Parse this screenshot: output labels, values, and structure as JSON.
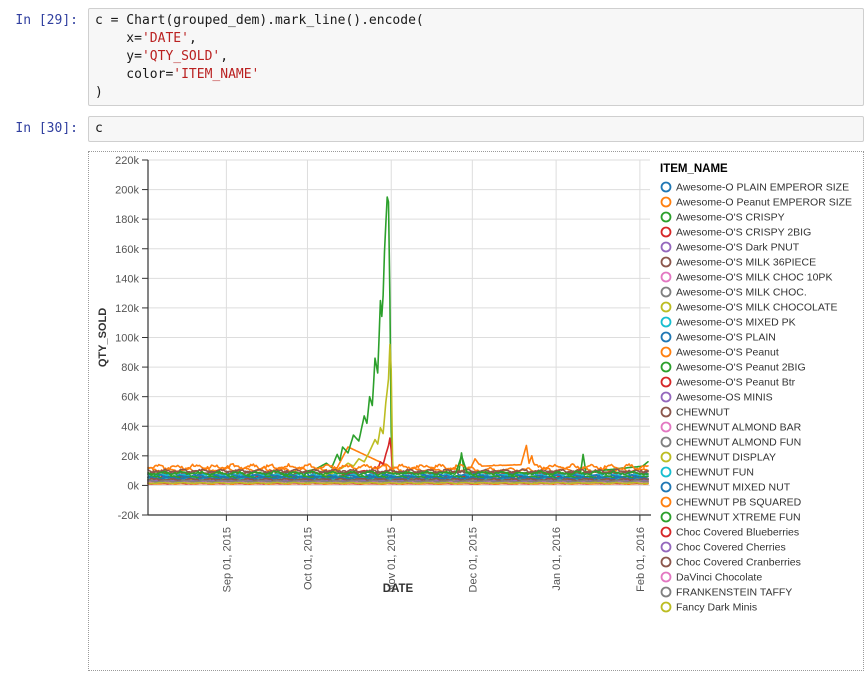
{
  "notebook": {
    "cells": [
      {
        "prompt": "In [29]:",
        "code_lines": [
          [
            [
              "plain",
              "c = Chart(grouped_dem).mark_line().encode("
            ]
          ],
          [
            [
              "plain",
              "    x="
            ],
            [
              "string",
              "'DATE'"
            ],
            [
              "plain",
              ","
            ]
          ],
          [
            [
              "plain",
              "    y="
            ],
            [
              "string",
              "'QTY_SOLD'"
            ],
            [
              "plain",
              ","
            ]
          ],
          [
            [
              "plain",
              "    color="
            ],
            [
              "string",
              "'ITEM_NAME'"
            ]
          ],
          [
            [
              "plain",
              ")"
            ]
          ]
        ]
      },
      {
        "prompt": "In [30]:",
        "code_lines": [
          [
            [
              "plain",
              "c"
            ]
          ]
        ]
      }
    ],
    "colors": {
      "prompt": "#303F9F",
      "code": "#1a1a1a",
      "string": "#BA2121",
      "cell_bg": "#f7f7f7",
      "cell_border": "#cfcfcf",
      "output_border": "#9a9a9a"
    }
  },
  "chart_data": {
    "type": "line",
    "title": "",
    "xlabel": "DATE",
    "ylabel": "QTY_SOLD",
    "legend_title": "ITEM_NAME",
    "legend_position": "right",
    "grid": true,
    "units": "values in thousands (k) of QTY_SOLD",
    "x_domain": [
      "2015-08-03",
      "2016-02-04"
    ],
    "total_days": 185,
    "xticks": [
      {
        "day": 29,
        "label": "Sep 01, 2015"
      },
      {
        "day": 59,
        "label": "Oct 01, 2015"
      },
      {
        "day": 90,
        "label": "Nov 01, 2015"
      },
      {
        "day": 120,
        "label": "Dec 01, 2015"
      },
      {
        "day": 151,
        "label": "Jan 01, 2016"
      },
      {
        "day": 182,
        "label": "Feb 01, 2016"
      }
    ],
    "ylim_k": [
      -20,
      220
    ],
    "yticks": [
      {
        "v": -20,
        "label": "-20k"
      },
      {
        "v": 0,
        "label": "0k"
      },
      {
        "v": 20,
        "label": "20k"
      },
      {
        "v": 40,
        "label": "40k"
      },
      {
        "v": 60,
        "label": "60k"
      },
      {
        "v": 80,
        "label": "80k"
      },
      {
        "v": 100,
        "label": "100k"
      },
      {
        "v": 120,
        "label": "120k"
      },
      {
        "v": 140,
        "label": "140k"
      },
      {
        "v": 160,
        "label": "160k"
      },
      {
        "v": 180,
        "label": "180k"
      },
      {
        "v": 200,
        "label": "200k"
      },
      {
        "v": 220,
        "label": "220k"
      }
    ],
    "palette": [
      "#1f77b4",
      "#ff7f0e",
      "#2ca02c",
      "#d62728",
      "#9467bd",
      "#8c564b",
      "#e377c2",
      "#7f7f7f",
      "#bcbd22",
      "#17becf"
    ],
    "axis_colors": {
      "grid": "#dddddd",
      "domain": "#333333",
      "tick_label": "#555555",
      "title": "#333333",
      "legend_label": "#333333"
    },
    "series": [
      {
        "name": "Awesome-O PLAIN EMPEROR SIZE",
        "color": "#1f77b4",
        "base_k": 7.5,
        "amp_k": 1.6
      },
      {
        "name": "Awesome-O Peanut EMPEROR SIZE",
        "color": "#ff7f0e",
        "base_k": 10.5,
        "amp_k": 2.0,
        "peaks_day_valuek": [
          [
            70,
            12
          ],
          [
            74,
            26
          ],
          [
            88,
            14
          ]
        ]
      },
      {
        "name": "Awesome-O'S CRISPY",
        "color": "#2ca02c",
        "base_k": 7.0,
        "amp_k": 1.8,
        "peaks_day_valuek": [
          [
            55,
            8
          ],
          [
            62,
            11
          ],
          [
            66,
            15
          ],
          [
            68,
            12
          ],
          [
            70,
            21
          ],
          [
            71,
            17
          ],
          [
            72,
            26
          ],
          [
            74,
            22
          ],
          [
            76,
            34
          ],
          [
            78,
            30
          ],
          [
            80,
            47
          ],
          [
            81,
            42
          ],
          [
            82,
            60
          ],
          [
            83,
            54
          ],
          [
            84,
            86
          ],
          [
            85,
            76
          ],
          [
            86,
            125
          ],
          [
            86.7,
            110
          ],
          [
            87.5,
            158
          ],
          [
            88.8,
            206
          ],
          [
            89.3,
            170
          ],
          [
            89.8,
            60
          ],
          [
            90.2,
            12
          ],
          [
            92,
            8
          ],
          [
            115,
            9
          ],
          [
            116,
            22
          ],
          [
            117,
            9
          ],
          [
            160,
            8
          ],
          [
            161,
            21
          ],
          [
            162,
            9
          ],
          [
            183,
            13
          ],
          [
            185,
            16
          ]
        ]
      },
      {
        "name": "Awesome-O'S CRISPY 2BIG",
        "color": "#d62728",
        "base_k": 5.0,
        "amp_k": 1.2,
        "peaks_day_valuek": [
          [
            70,
            6
          ],
          [
            76,
            8.5
          ],
          [
            80,
            10
          ],
          [
            82,
            9
          ],
          [
            84,
            12.5
          ],
          [
            85,
            11
          ],
          [
            86,
            16
          ],
          [
            87,
            14
          ],
          [
            88,
            21
          ],
          [
            89,
            27
          ],
          [
            89.6,
            33
          ],
          [
            90,
            24
          ],
          [
            90.4,
            8
          ],
          [
            91,
            5
          ]
        ]
      },
      {
        "name": "Awesome-O'S Dark PNUT",
        "color": "#9467bd",
        "base_k": 4.2,
        "amp_k": 0.9
      },
      {
        "name": "Awesome-O'S MILK 36PIECE",
        "color": "#8c564b",
        "base_k": 8.8,
        "amp_k": 1.4
      },
      {
        "name": "Awesome-O'S MILK CHOC 10PK",
        "color": "#e377c2",
        "base_k": 2.6,
        "amp_k": 0.6
      },
      {
        "name": "Awesome-O'S MILK CHOC.",
        "color": "#7f7f7f",
        "base_k": 5.2,
        "amp_k": 1.0
      },
      {
        "name": "Awesome-O'S MILK CHOCOLATE",
        "color": "#bcbd22",
        "base_k": 4.2,
        "amp_k": 1.0,
        "peaks_day_valuek": [
          [
            58,
            4
          ],
          [
            64,
            6
          ],
          [
            68,
            8
          ],
          [
            72,
            12
          ],
          [
            74,
            15
          ],
          [
            76,
            13
          ],
          [
            78,
            18
          ],
          [
            80,
            16
          ],
          [
            82,
            23
          ],
          [
            84,
            31
          ],
          [
            85,
            28
          ],
          [
            86,
            39
          ],
          [
            87,
            35
          ],
          [
            88,
            56
          ],
          [
            89,
            72
          ],
          [
            89.6,
            100
          ],
          [
            90,
            78
          ],
          [
            90.4,
            18
          ],
          [
            91,
            4.5
          ]
        ]
      },
      {
        "name": "Awesome-O'S MIXED PK",
        "color": "#17becf",
        "base_k": 6.6,
        "amp_k": 1.2
      },
      {
        "name": "Awesome-O'S PLAIN",
        "color": "#1f77b4",
        "base_k": 6.2,
        "amp_k": 1.1
      },
      {
        "name": "Awesome-O'S Peanut",
        "color": "#ff7f0e",
        "base_k": 12.5,
        "amp_k": 2.2,
        "peaks_day_valuek": [
          [
            120,
            14
          ],
          [
            121,
            18
          ],
          [
            123,
            13
          ],
          [
            138,
            14
          ],
          [
            140,
            27
          ],
          [
            141,
            15
          ],
          [
            142,
            20
          ],
          [
            143,
            12
          ]
        ]
      },
      {
        "name": "Awesome-O'S Peanut 2BIG",
        "color": "#2ca02c",
        "base_k": 5.6,
        "amp_k": 1.0
      },
      {
        "name": "Awesome-O'S Peanut Btr",
        "color": "#d62728",
        "base_k": 2.3,
        "amp_k": 0.5
      },
      {
        "name": "Awesome-OS MINIS",
        "color": "#9467bd",
        "base_k": 3.6,
        "amp_k": 0.8
      },
      {
        "name": "CHEWNUT",
        "color": "#8c564b",
        "base_k": 9.6,
        "amp_k": 1.5
      },
      {
        "name": "CHEWNUT ALMOND BAR",
        "color": "#e377c2",
        "base_k": 2.0,
        "amp_k": 0.5
      },
      {
        "name": "CHEWNUT ALMOND FUN",
        "color": "#7f7f7f",
        "base_k": 3.6,
        "amp_k": 0.7
      },
      {
        "name": "CHEWNUT DISPLAY",
        "color": "#bcbd22",
        "base_k": 3.1,
        "amp_k": 0.6
      },
      {
        "name": "CHEWNUT FUN",
        "color": "#17becf",
        "base_k": 4.3,
        "amp_k": 0.9
      },
      {
        "name": "CHEWNUT MIXED NUT",
        "color": "#1f77b4",
        "base_k": 5.0,
        "amp_k": 1.0
      },
      {
        "name": "CHEWNUT PB SQUARED",
        "color": "#ff7f0e",
        "base_k": 1.1,
        "amp_k": 0.3
      },
      {
        "name": "CHEWNUT XTREME FUN",
        "color": "#2ca02c",
        "base_k": 8.3,
        "amp_k": 1.5,
        "peaks_day_valuek": [
          [
            114,
            9
          ],
          [
            116,
            20
          ],
          [
            118,
            9
          ]
        ]
      },
      {
        "name": "Choc Covered Blueberries",
        "color": "#d62728",
        "base_k": 1.3,
        "amp_k": 0.3
      },
      {
        "name": "Choc Covered Cherries",
        "color": "#9467bd",
        "base_k": 3.0,
        "amp_k": 0.7
      },
      {
        "name": "Choc Covered Cranberries",
        "color": "#8c564b",
        "base_k": 4.0,
        "amp_k": 0.8
      },
      {
        "name": "DaVinci Chocolate",
        "color": "#e377c2",
        "base_k": 1.8,
        "amp_k": 0.4
      },
      {
        "name": "FRANKENSTEIN TAFFY",
        "color": "#7f7f7f",
        "base_k": 2.9,
        "amp_k": 0.6
      },
      {
        "name": "Fancy Dark  Minis",
        "color": "#bcbd22",
        "base_k": 1.6,
        "amp_k": 0.4
      }
    ]
  }
}
